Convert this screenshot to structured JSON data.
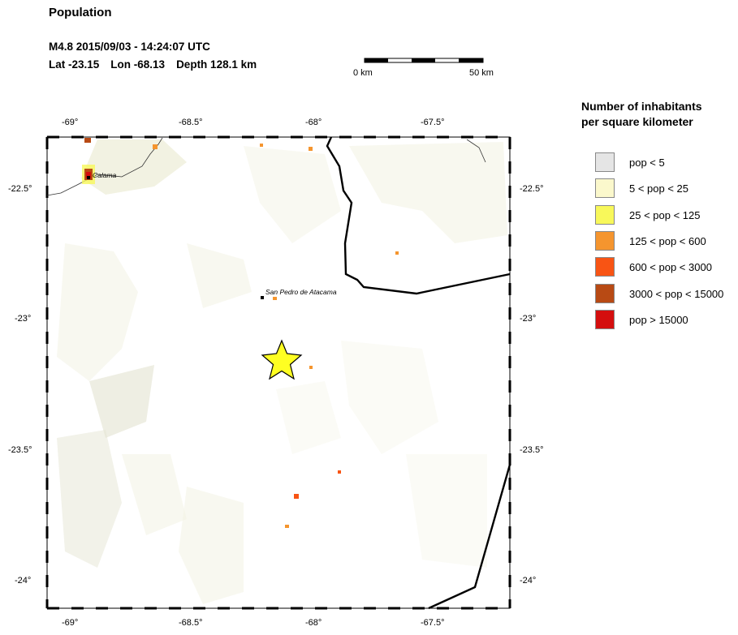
{
  "title": "Population",
  "event": {
    "summary": "M4.8  2015/09/03 - 14:24:07 UTC",
    "lat": "Lat -23.15",
    "lon": "Lon -68.13",
    "depth": "Depth 128.1 km"
  },
  "scalebar": {
    "left_label": "0 km",
    "right_label": "50 km"
  },
  "map": {
    "lon_ticks": [
      "-69°",
      "-68.5°",
      "-68°",
      "-67.5°"
    ],
    "lat_ticks": [
      "-22.5°",
      "-23°",
      "-23.5°",
      "-24°"
    ],
    "cities": [
      {
        "name": "Calama"
      },
      {
        "name": "San Pedro de Atacama"
      }
    ],
    "epicenter_color": "#ffff22",
    "border_color": "#000000"
  },
  "legend": {
    "title_line1": "Number of inhabitants",
    "title_line2": "per square kilometer",
    "items": [
      {
        "label": "pop < 5",
        "color": "#e5e5e5"
      },
      {
        "label": "5 < pop < 25",
        "color": "#fbf8cc"
      },
      {
        "label": "25 < pop < 125",
        "color": "#f8f85a"
      },
      {
        "label": "125 < pop < 600",
        "color": "#f5952e"
      },
      {
        "label": "600 < pop < 3000",
        "color": "#f85414"
      },
      {
        "label": "3000 < pop < 15000",
        "color": "#b84a14"
      },
      {
        "label": "pop > 15000",
        "color": "#d40e0e"
      }
    ]
  }
}
